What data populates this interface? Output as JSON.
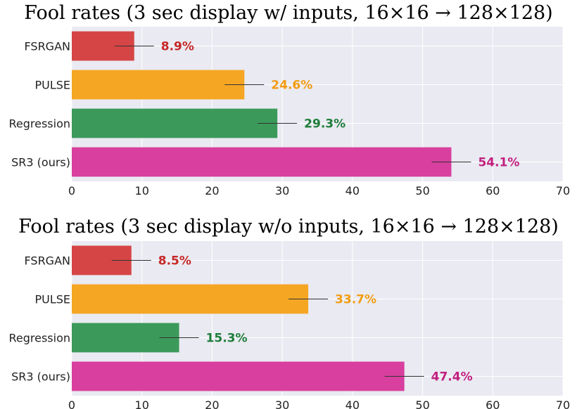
{
  "chart_data": [
    {
      "type": "bar",
      "orientation": "horizontal",
      "title": "Fool rates (3 sec display w/ inputs, 16×16 → 128×128)",
      "categories": [
        "FSRGAN",
        "PULSE",
        "Regression",
        "SR3 (ours)"
      ],
      "values": [
        8.9,
        24.6,
        29.3,
        54.1
      ],
      "value_labels": [
        "8.9%",
        "24.6%",
        "29.3%",
        "54.1%"
      ],
      "colors": [
        "#d64545",
        "#f5a623",
        "#3b9a5a",
        "#d83f9e"
      ],
      "label_colors": [
        "#c62828",
        "#f39c12",
        "#1e7d3a",
        "#c2207f"
      ],
      "xlim": [
        0,
        70
      ],
      "xticks": [
        "0",
        "10",
        "20",
        "30",
        "40",
        "50",
        "60",
        "70"
      ],
      "grid": true
    },
    {
      "type": "bar",
      "orientation": "horizontal",
      "title": "Fool rates (3 sec display w/o inputs, 16×16 → 128×128)",
      "categories": [
        "FSRGAN",
        "PULSE",
        "Regression",
        "SR3 (ours)"
      ],
      "values": [
        8.5,
        33.7,
        15.3,
        47.4
      ],
      "value_labels": [
        "8.5%",
        "33.7%",
        "15.3%",
        "47.4%"
      ],
      "colors": [
        "#d64545",
        "#f5a623",
        "#3b9a5a",
        "#d83f9e"
      ],
      "label_colors": [
        "#c62828",
        "#f39c12",
        "#1e7d3a",
        "#c2207f"
      ],
      "xlim": [
        0,
        70
      ],
      "xticks": [
        "0",
        "10",
        "20",
        "30",
        "40",
        "50",
        "60",
        "70"
      ],
      "grid": true
    }
  ]
}
